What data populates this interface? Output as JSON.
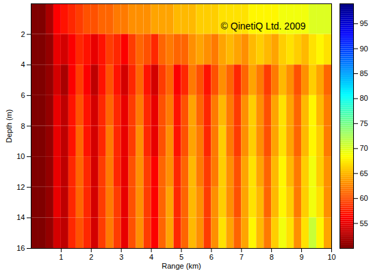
{
  "chart_data": {
    "type": "heatmap",
    "x_label": "Range (km)",
    "y_label": "Depth (m)",
    "annotations": [
      "© QinetiQ Ltd. 2009"
    ],
    "xlim": [
      0,
      10
    ],
    "xticks": [
      1,
      2,
      3,
      4,
      5,
      6,
      7,
      8,
      9,
      10
    ],
    "ylim": [
      0,
      16
    ],
    "yticks": [
      2,
      4,
      6,
      8,
      10,
      12,
      14,
      16
    ],
    "range_edges": [
      0,
      0.25,
      0.5,
      0.75,
      1,
      1.25,
      1.5,
      1.75,
      2,
      2.25,
      2.5,
      2.75,
      3,
      3.25,
      3.5,
      3.75,
      4,
      4.25,
      4.5,
      4.75,
      5,
      5.25,
      5.5,
      5.75,
      6,
      6.25,
      6.5,
      6.75,
      7,
      7.25,
      7.5,
      7.75,
      8,
      8.25,
      8.5,
      8.75,
      9,
      9.25,
      9.5,
      9.75,
      10
    ],
    "depth_edges": [
      0,
      2,
      4,
      6,
      8,
      10,
      12,
      14,
      16
    ],
    "values": [
      [
        50,
        50,
        52,
        56,
        57,
        58,
        59,
        60,
        60,
        61,
        61,
        62,
        62,
        63,
        63,
        63,
        64,
        64,
        64,
        65,
        65,
        65,
        66,
        66,
        66,
        67,
        67,
        67,
        67,
        68,
        68,
        68,
        68,
        69,
        69,
        69,
        69,
        70,
        70,
        70
      ],
      [
        50,
        50,
        51,
        55,
        54,
        56,
        58,
        57,
        55,
        57,
        59,
        58,
        56,
        59,
        61,
        60,
        58,
        61,
        62,
        61,
        61,
        63,
        64,
        63,
        62,
        64,
        65,
        64,
        63,
        65,
        66,
        65,
        64,
        66,
        67,
        66,
        65,
        67,
        68,
        67
      ],
      [
        50,
        50,
        51,
        54,
        52,
        56,
        59,
        56,
        53,
        57,
        60,
        57,
        54,
        58,
        61,
        57,
        54,
        59,
        61,
        56,
        58,
        62,
        60,
        57,
        60,
        63,
        61,
        58,
        61,
        64,
        62,
        59,
        62,
        65,
        63,
        60,
        63,
        66,
        64,
        61
      ],
      [
        50,
        50,
        51,
        55,
        53,
        57,
        60,
        57,
        54,
        58,
        61,
        58,
        55,
        59,
        62,
        58,
        55,
        60,
        62,
        57,
        60,
        64,
        61,
        58,
        62,
        65,
        62,
        59,
        63,
        66,
        63,
        60,
        64,
        67,
        64,
        61,
        65,
        68,
        65,
        62
      ],
      [
        50,
        50,
        51,
        55,
        53,
        57,
        61,
        57,
        54,
        58,
        62,
        58,
        55,
        59,
        63,
        58,
        55,
        60,
        63,
        57,
        60,
        64,
        62,
        58,
        62,
        66,
        62,
        59,
        63,
        66,
        63,
        60,
        64,
        67,
        64,
        61,
        65,
        68,
        66,
        62
      ],
      [
        50,
        50,
        51,
        55,
        53,
        58,
        61,
        58,
        54,
        59,
        62,
        58,
        55,
        60,
        63,
        59,
        56,
        61,
        63,
        58,
        61,
        65,
        62,
        59,
        62,
        66,
        63,
        60,
        64,
        67,
        64,
        61,
        65,
        68,
        65,
        62,
        66,
        69,
        66,
        63
      ],
      [
        50,
        50,
        51,
        55,
        53,
        58,
        61,
        58,
        54,
        59,
        62,
        59,
        55,
        60,
        63,
        59,
        56,
        61,
        64,
        58,
        61,
        65,
        63,
        59,
        63,
        66,
        63,
        60,
        64,
        67,
        65,
        61,
        65,
        68,
        66,
        62,
        66,
        69,
        67,
        63
      ],
      [
        50,
        50,
        51,
        54,
        53,
        58,
        60,
        58,
        54,
        59,
        62,
        59,
        55,
        60,
        63,
        59,
        56,
        61,
        64,
        58,
        61,
        65,
        63,
        59,
        63,
        67,
        64,
        61,
        64,
        68,
        65,
        62,
        66,
        69,
        67,
        63,
        67,
        71,
        68,
        64
      ]
    ],
    "colorbar_lim": [
      50,
      99
    ],
    "colorbar_ticks": [
      55,
      60,
      65,
      70,
      75,
      80,
      85,
      90,
      95
    ]
  }
}
